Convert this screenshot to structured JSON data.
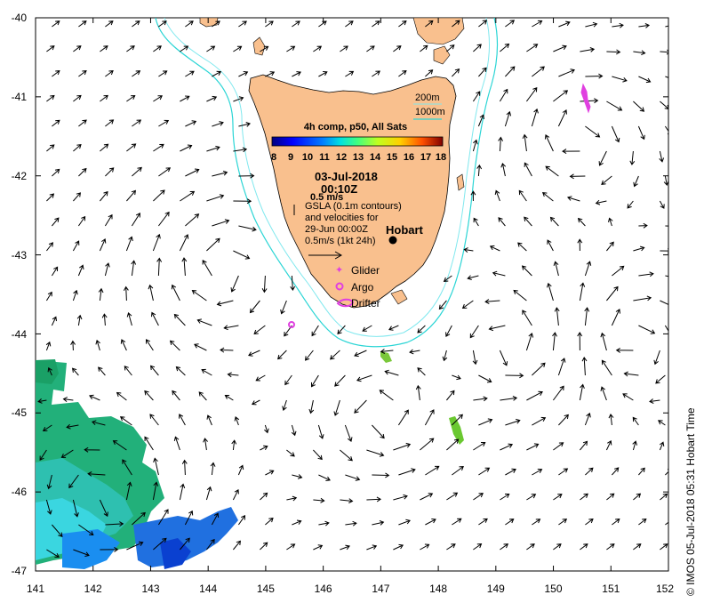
{
  "map": {
    "lon_range": [
      141,
      152
    ],
    "lat_range": [
      -47,
      -40
    ],
    "lon_ticks": [
      "141",
      "142",
      "143",
      "144",
      "145",
      "146",
      "147",
      "148",
      "149",
      "150",
      "151",
      "152"
    ],
    "lat_ticks": [
      "-40",
      "-41",
      "-42",
      "-43",
      "-44",
      "-45",
      "-46",
      "-47"
    ],
    "colors": {
      "land": "#f9c08e",
      "land_outline": "#000000",
      "contour_200m": "#80e8ee",
      "contour_1000m": "#2bd5d5",
      "arrow": "#000000",
      "glider": "#e040e0",
      "argo": "#e040e0",
      "drifter": "#e040e0"
    }
  },
  "colorbar": {
    "title": "4h comp, p50, All Sats",
    "ticks": [
      "8",
      "9",
      "10",
      "11",
      "12",
      "13",
      "14",
      "15",
      "16",
      "17",
      "18"
    ],
    "range": [
      8,
      18
    ]
  },
  "info": {
    "date": "03-Jul-2018",
    "time": "00:10Z",
    "scale_speed": "0.5 m/s",
    "gsla_line1": "GSLA (0.1m contours)",
    "gsla_line2": "and velocities for",
    "gsla_line3": "29-Jun 00:00Z",
    "gsla_line4": "0.5m/s (1kt 24h)"
  },
  "contour_legend": {
    "label_200": "200m",
    "label_1000": "1000m"
  },
  "places": {
    "hobart": "Hobart"
  },
  "markers": {
    "glider": "Glider",
    "argo": "Argo",
    "drifter": "Drifter"
  },
  "watermark": "© IMOS 05-Jul-2018 05:31 Hobart Time"
}
